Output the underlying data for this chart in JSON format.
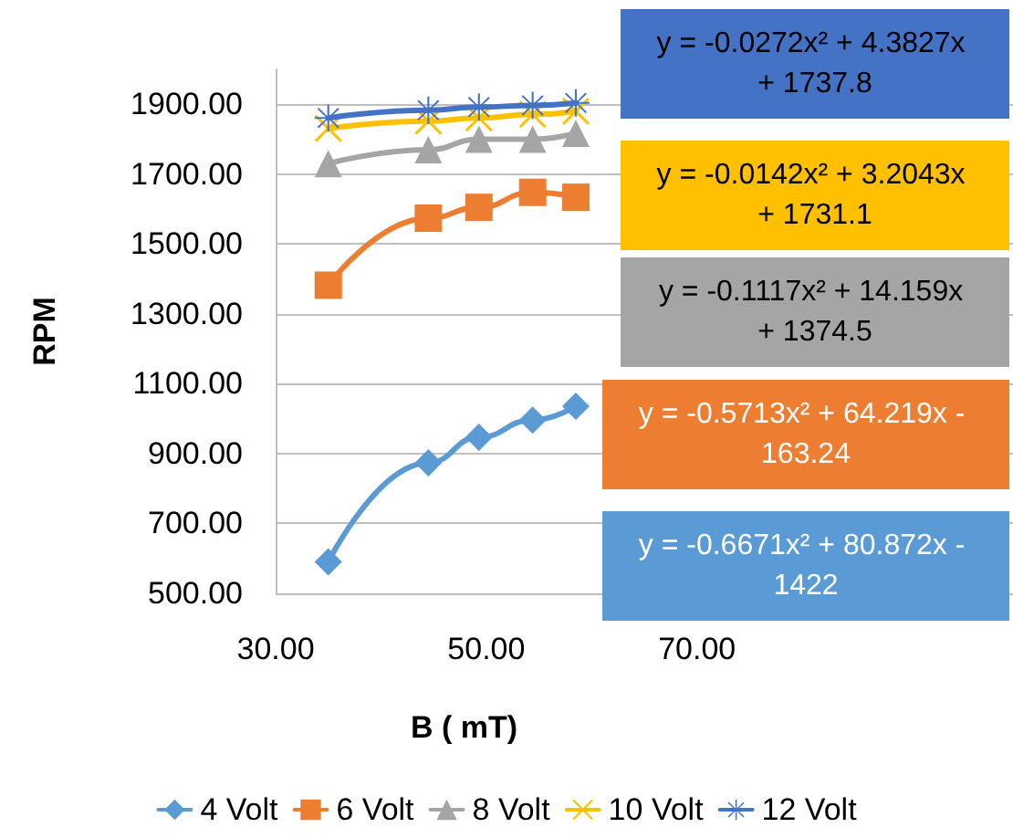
{
  "chart_data": {
    "type": "line",
    "xlabel": "B ( mT)",
    "ylabel": "RPM",
    "xlim": [
      30,
      100
    ],
    "xticks": [
      {
        "value": 30,
        "label": "30.00"
      },
      {
        "value": 50,
        "label": "50.00"
      },
      {
        "value": 70,
        "label": "70.00"
      }
    ],
    "ylim": [
      500,
      2000
    ],
    "yticks": [
      {
        "value": 500,
        "label": "500.00"
      },
      {
        "value": 700,
        "label": "700.00"
      },
      {
        "value": 900,
        "label": "900.00"
      },
      {
        "value": 1100,
        "label": "1100.00"
      },
      {
        "value": 1300,
        "label": "1300.00"
      },
      {
        "value": 1500,
        "label": "1500.00"
      },
      {
        "value": 1700,
        "label": "1700.00"
      },
      {
        "value": 1900,
        "label": "1900.00"
      }
    ],
    "x": [
      35,
      44.5,
      49.3,
      54.4,
      58.5
    ],
    "series": [
      {
        "name": "4 Volt",
        "color": "#5b9bd5",
        "marker": "diamond",
        "values": [
          590,
          874,
          947,
          996,
          1036
        ]
      },
      {
        "name": "6 Volt",
        "color": "#ed7d31",
        "marker": "square",
        "values": [
          1382,
          1574,
          1605,
          1648,
          1634
        ]
      },
      {
        "name": "8 Volt",
        "color": "#a5a5a5",
        "marker": "triangle",
        "values": [
          1730,
          1770,
          1800,
          1800,
          1817
        ]
      },
      {
        "name": "10 Volt",
        "color": "#ffc000",
        "marker": "cross",
        "values": [
          1831,
          1852,
          1861,
          1871,
          1880
        ]
      },
      {
        "name": "12 Volt",
        "color": "#4472c4",
        "marker": "star",
        "values": [
          1861,
          1883,
          1892,
          1897,
          1904
        ]
      }
    ],
    "annotations": [
      "y = -0.0272x² + 4.3827x + 1737.8",
      "y = -0.0142x² + 3.2043x + 1731.1",
      "y = -0.1117x² + 14.159x + 1374.5",
      "y = -0.5713x² + 64.219x - 163.24",
      "y = -0.6671x² + 80.872x - 1422"
    ],
    "grid": "y",
    "legend": "bottom"
  }
}
